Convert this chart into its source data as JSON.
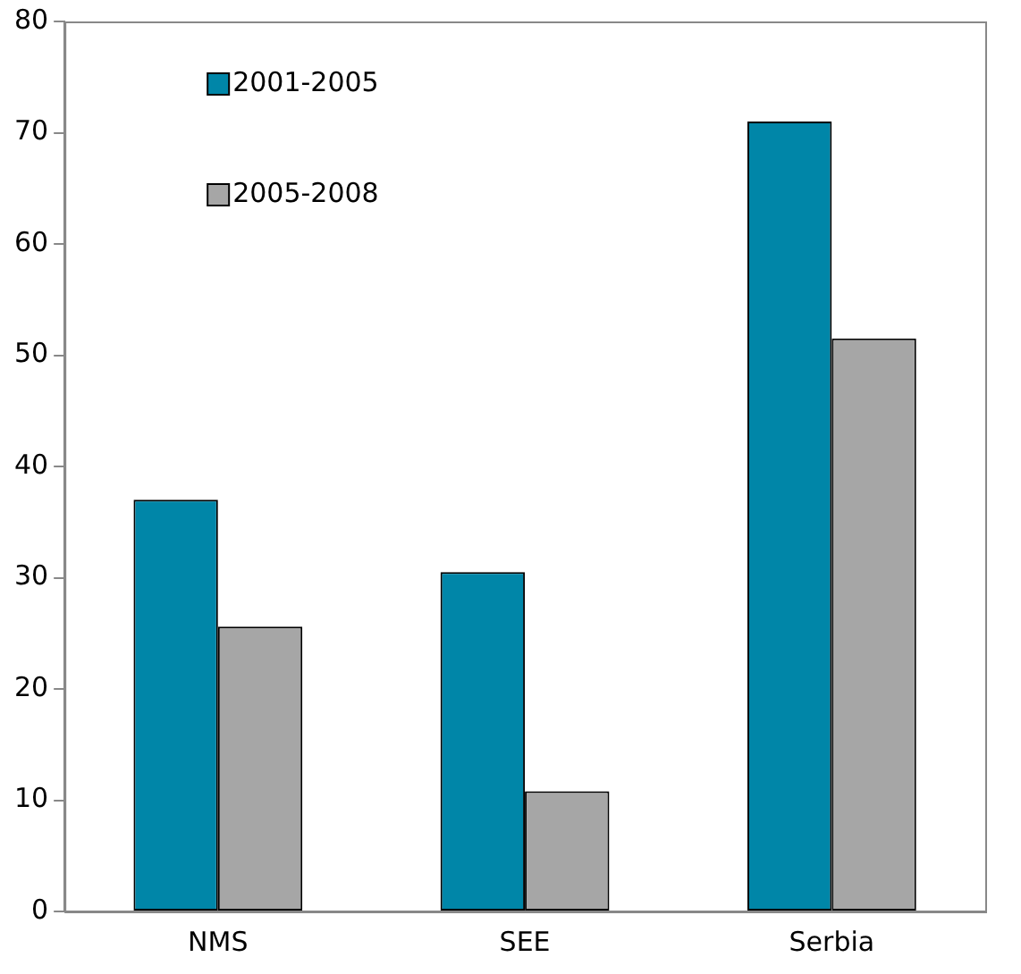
{
  "chart_data": {
    "type": "bar",
    "categories": [
      "NMS",
      "SEE",
      "Serbia"
    ],
    "series": [
      {
        "name": "2001-2005",
        "color": "#0086a8",
        "values": [
          37,
          30.5,
          71
        ]
      },
      {
        "name": "2005-2008",
        "color": "#a6a6a6",
        "values": [
          25.6,
          10.8,
          51.5
        ]
      }
    ],
    "ylim": [
      0,
      80
    ],
    "yticks": [
      0,
      10,
      20,
      30,
      40,
      50,
      60,
      70,
      80
    ],
    "grid": false,
    "legend": "top left"
  }
}
